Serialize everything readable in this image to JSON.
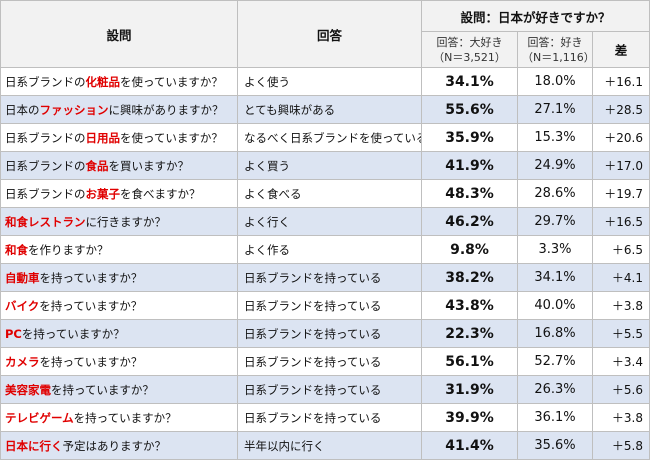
{
  "header": {
    "question": "設問",
    "answer": "回答",
    "group": "設問：日本が好きですか？",
    "col_love": "回答：大好き",
    "col_love_n": "（N＝3,521）",
    "col_like": "回答：好き",
    "col_like_n": "（N＝1,116）",
    "diff": "差"
  },
  "rows": [
    {
      "q_pre": "日系ブランドの",
      "q_em": "化粧品",
      "q_post": "を使っていますか？",
      "answer": "よく使う",
      "love": "34.1%",
      "like": "18.0%",
      "diff": "＋16.1"
    },
    {
      "q_pre": "日本の",
      "q_em": "ファッション",
      "q_post": "に興味がありますか？",
      "answer": "とても興味がある",
      "love": "55.6%",
      "like": "27.1%",
      "diff": "＋28.5"
    },
    {
      "q_pre": "日系ブランドの",
      "q_em": "日用品",
      "q_post": "を使っていますか？",
      "answer": "なるべく日系ブランドを使っている",
      "love": "35.9%",
      "like": "15.3%",
      "diff": "＋20.6"
    },
    {
      "q_pre": "日系ブランドの",
      "q_em": "食品",
      "q_post": "を買いますか？",
      "answer": "よく買う",
      "love": "41.9%",
      "like": "24.9%",
      "diff": "＋17.0"
    },
    {
      "q_pre": "日系ブランドの",
      "q_em": "お菓子",
      "q_post": "を食べますか？",
      "answer": "よく食べる",
      "love": "48.3%",
      "like": "28.6%",
      "diff": "＋19.7"
    },
    {
      "q_pre": "",
      "q_em": "和食レストラン",
      "q_post": "に行きますか？",
      "answer": "よく行く",
      "love": "46.2%",
      "like": "29.7%",
      "diff": "＋16.5"
    },
    {
      "q_pre": "",
      "q_em": "和食",
      "q_post": "を作りますか？",
      "answer": "よく作る",
      "love": "9.8%",
      "like": "3.3%",
      "diff": "＋6.5"
    },
    {
      "q_pre": "",
      "q_em": "自動車",
      "q_post": "を持っていますか？",
      "answer": "日系ブランドを持っている",
      "love": "38.2%",
      "like": "34.1%",
      "diff": "＋4.1"
    },
    {
      "q_pre": "",
      "q_em": "バイク",
      "q_post": "を持っていますか？",
      "answer": "日系ブランドを持っている",
      "love": "43.8%",
      "like": "40.0%",
      "diff": "＋3.8"
    },
    {
      "q_pre": "",
      "q_em": "PC",
      "q_post": "を持っていますか？",
      "answer": "日系ブランドを持っている",
      "love": "22.3%",
      "like": "16.8%",
      "diff": "＋5.5"
    },
    {
      "q_pre": "",
      "q_em": "カメラ",
      "q_post": "を持っていますか？",
      "answer": "日系ブランドを持っている",
      "love": "56.1%",
      "like": "52.7%",
      "diff": "＋3.4"
    },
    {
      "q_pre": "",
      "q_em": "美容家電",
      "q_post": "を持っていますか？",
      "answer": "日系ブランドを持っている",
      "love": "31.9%",
      "like": "26.3%",
      "diff": "＋5.6"
    },
    {
      "q_pre": "",
      "q_em": "テレビゲーム",
      "q_post": "を持っていますか？",
      "answer": "日系ブランドを持っている",
      "love": "39.9%",
      "like": "36.1%",
      "diff": "＋3.8"
    },
    {
      "q_pre": "",
      "q_em": "日本に行く",
      "q_post": "予定はありますか？",
      "answer": "半年以内に行く",
      "love": "41.4%",
      "like": "35.6%",
      "diff": "＋5.8"
    }
  ]
}
